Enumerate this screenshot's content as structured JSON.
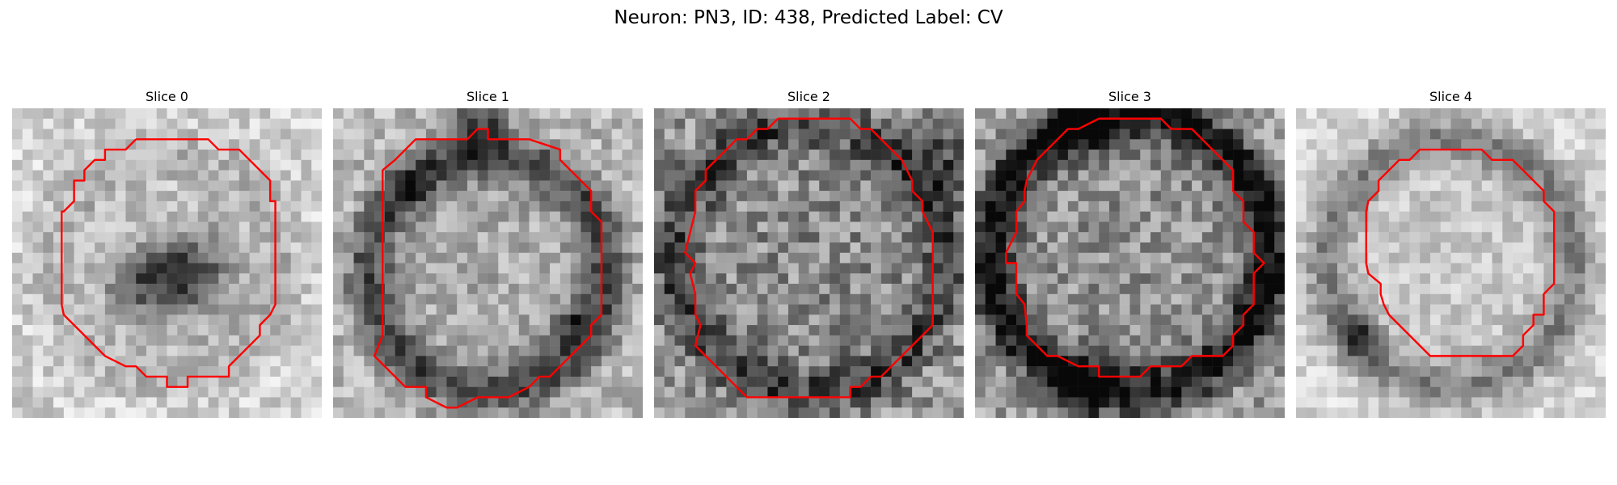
{
  "figure": {
    "title": "Neuron: PN3, ID: 438, Predicted Label: CV"
  },
  "slices": [
    {
      "title": "Slice 0"
    },
    {
      "title": "Slice 1"
    },
    {
      "title": "Slice 2"
    },
    {
      "title": "Slice 3"
    },
    {
      "title": "Slice 4"
    }
  ],
  "colors": {
    "contour": "#ff0000",
    "background": "#ffffff"
  }
}
